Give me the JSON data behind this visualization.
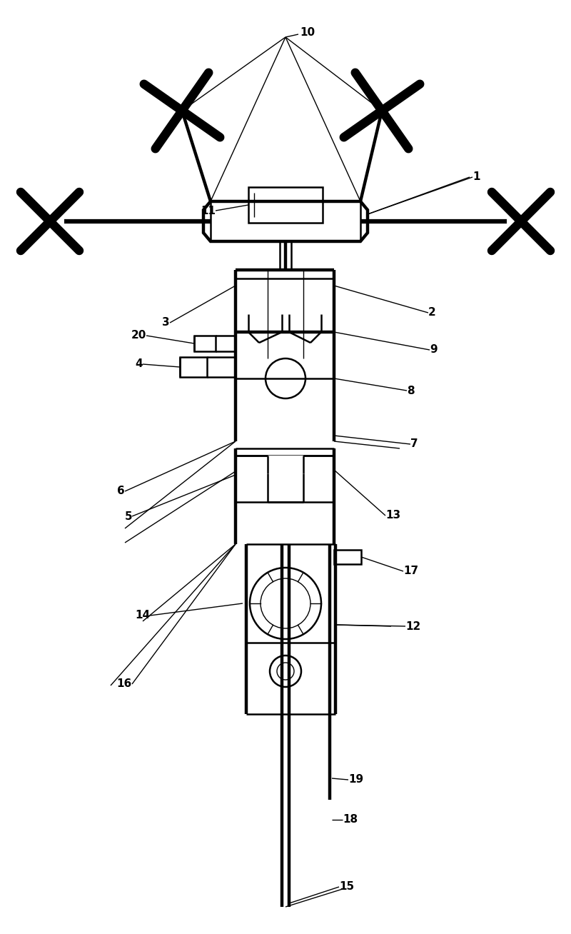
{
  "fig_width": 8.0,
  "fig_height": 13.08,
  "bg_color": "#ffffff",
  "line_color": "#000000",
  "lw1": 1.0,
  "lw2": 1.8,
  "lw3": 3.2,
  "lw4": 4.5
}
